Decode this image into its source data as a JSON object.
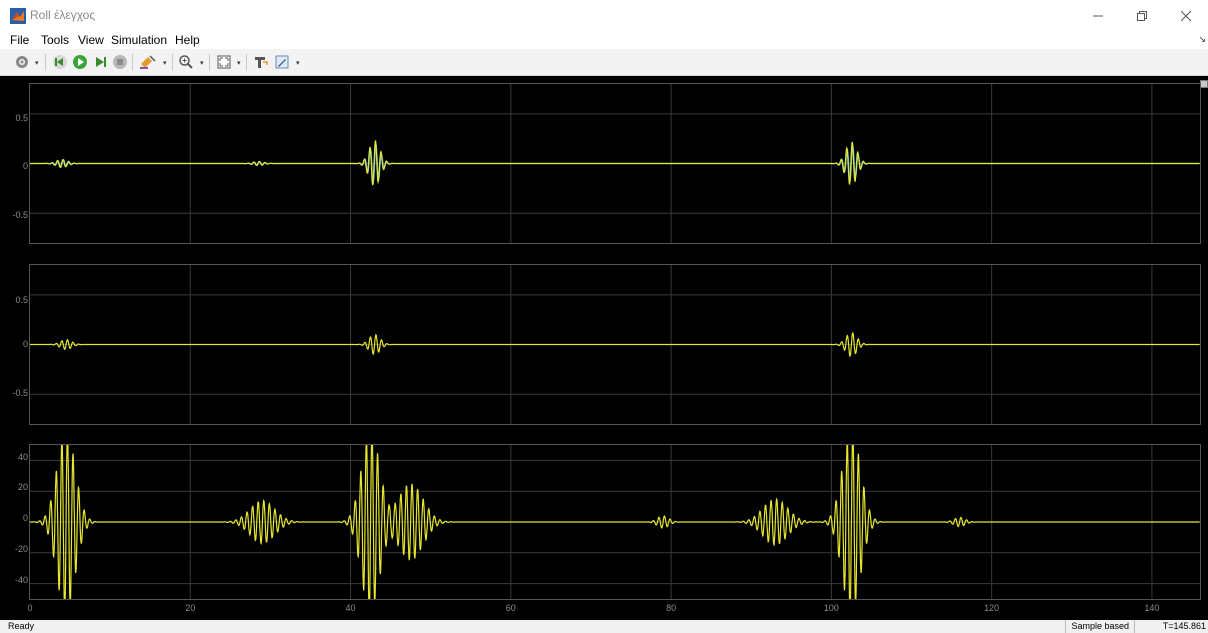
{
  "window": {
    "title": "Roll έλεγχος",
    "icon": "matlab-icon"
  },
  "menu": {
    "items": [
      "File",
      "Tools",
      "View",
      "Simulation",
      "Help"
    ]
  },
  "toolbar": {
    "icons": [
      "settings-gear-icon",
      "step-back-icon",
      "run-icon",
      "step-forward-icon",
      "stop-icon",
      "highlight-icon",
      "zoom-in-icon",
      "fit-axes-icon",
      "signal-tool-icon",
      "style-icon"
    ]
  },
  "colors": {
    "trace_blue": "#4db3ff",
    "trace_yellow": "#e6e62e",
    "trace_green": "#7fe07f",
    "grid": "#3a3a3a",
    "background": "#000000"
  },
  "chart_data": [
    {
      "type": "line",
      "xlim": [
        0,
        146
      ],
      "ylim": [
        -0.8,
        0.8
      ],
      "yticks": [
        "0.5",
        "0",
        "-0.5"
      ],
      "series": [
        {
          "color": "#4db3ff",
          "bursts": [
            [
              4,
              0.04
            ],
            [
              28.5,
              0.02
            ],
            [
              43,
              0.2
            ],
            [
              102.5,
              0.18
            ]
          ]
        },
        {
          "color": "#e6e62e",
          "bursts": [
            [
              4,
              0.04
            ],
            [
              28.5,
              0.02
            ],
            [
              43,
              0.23
            ],
            [
              102.5,
              0.22
            ]
          ]
        }
      ]
    },
    {
      "type": "line",
      "xlim": [
        0,
        146
      ],
      "ylim": [
        -0.8,
        0.8
      ],
      "yticks": [
        "0.5",
        "0",
        "-0.5"
      ],
      "series": [
        {
          "color": "#e6e62e",
          "bursts": [
            [
              4.5,
              0.05
            ],
            [
              43,
              0.1
            ],
            [
              102.5,
              0.12
            ]
          ]
        }
      ]
    },
    {
      "type": "line",
      "xlim": [
        0,
        146
      ],
      "ylim": [
        -50,
        50
      ],
      "yticks": [
        "40",
        "20",
        "0",
        "-20",
        "-40"
      ],
      "xticks": [
        "0",
        "20",
        "40",
        "60",
        "80",
        "100",
        "120",
        "140"
      ],
      "series": [
        {
          "color": "#e6e62e",
          "bursts": [
            [
              4.5,
              60
            ],
            [
              29,
              14
            ],
            [
              42.5,
              60
            ],
            [
              47.5,
              25
            ],
            [
              79,
              4
            ],
            [
              93,
              15
            ],
            [
              102.5,
              60
            ],
            [
              116,
              3
            ]
          ]
        }
      ]
    }
  ],
  "status": {
    "left": "Ready",
    "mode": "Sample based",
    "time": "T=145.861"
  }
}
